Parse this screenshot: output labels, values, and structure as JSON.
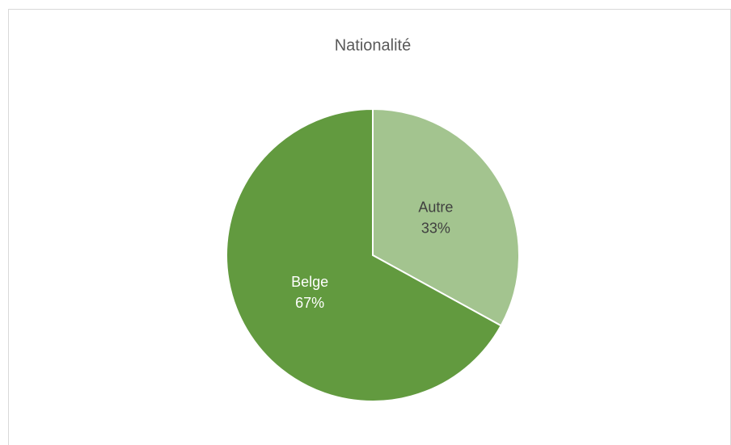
{
  "chart_data": {
    "type": "pie",
    "title": "Nationalité",
    "categories": [
      "Autre",
      "Belge"
    ],
    "values": [
      33,
      67
    ],
    "value_labels": [
      "33%",
      "67%"
    ],
    "colors": [
      "#a3c48f",
      "#629a3f"
    ]
  }
}
